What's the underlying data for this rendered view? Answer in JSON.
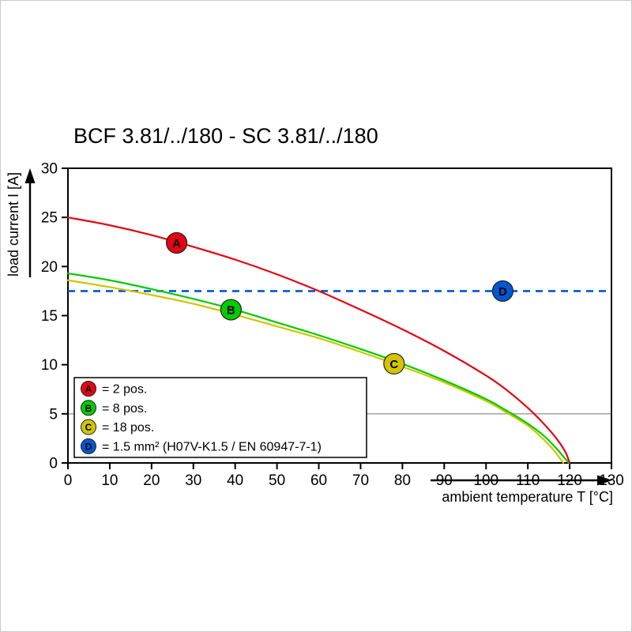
{
  "page": {
    "background": "#ffffff"
  },
  "chart_data": {
    "type": "line",
    "title": "BCF 3.81/../180 - SC 3.81/../180",
    "xlabel": "ambient temperature T [°C]",
    "ylabel": "load current I [A]",
    "xlim": [
      0,
      130
    ],
    "ylim": [
      0,
      30
    ],
    "x_ticks": [
      0,
      10,
      20,
      30,
      40,
      50,
      60,
      70,
      80,
      90,
      100,
      110,
      120,
      130
    ],
    "y_ticks": [
      0,
      5,
      10,
      15,
      20,
      25,
      30
    ],
    "grid": "off",
    "partial_gridline_y": 5,
    "legend_position": "lower left",
    "series": [
      {
        "name": "A",
        "label": "= 2 pos.",
        "color": "#e30613",
        "marker": {
          "x": 26,
          "y": 22.4
        },
        "points": [
          [
            0,
            25.0
          ],
          [
            10,
            24.2
          ],
          [
            20,
            23.2
          ],
          [
            30,
            22.0
          ],
          [
            40,
            20.7
          ],
          [
            50,
            19.2
          ],
          [
            60,
            17.5
          ],
          [
            70,
            15.6
          ],
          [
            80,
            13.6
          ],
          [
            90,
            11.4
          ],
          [
            100,
            8.9
          ],
          [
            105,
            7.4
          ],
          [
            110,
            5.6
          ],
          [
            114,
            3.9
          ],
          [
            117,
            2.4
          ],
          [
            119,
            1.1
          ],
          [
            120,
            0
          ]
        ]
      },
      {
        "name": "B",
        "label": "= 8 pos.",
        "color": "#00cc00",
        "marker": {
          "x": 39,
          "y": 15.6
        },
        "points": [
          [
            0,
            19.3
          ],
          [
            10,
            18.6
          ],
          [
            20,
            17.7
          ],
          [
            30,
            16.7
          ],
          [
            40,
            15.6
          ],
          [
            50,
            14.3
          ],
          [
            60,
            13.0
          ],
          [
            70,
            11.6
          ],
          [
            80,
            10.1
          ],
          [
            90,
            8.4
          ],
          [
            100,
            6.5
          ],
          [
            105,
            5.3
          ],
          [
            110,
            4.0
          ],
          [
            114,
            2.7
          ],
          [
            117,
            1.4
          ],
          [
            119,
            0.4
          ],
          [
            119.8,
            0
          ]
        ]
      },
      {
        "name": "C",
        "label": "= 18 pos.",
        "color": "#d2c500",
        "marker": {
          "x": 78,
          "y": 10.1
        },
        "points": [
          [
            0,
            18.6
          ],
          [
            10,
            17.9
          ],
          [
            20,
            17.1
          ],
          [
            30,
            16.2
          ],
          [
            40,
            15.1
          ],
          [
            50,
            13.9
          ],
          [
            60,
            12.7
          ],
          [
            70,
            11.3
          ],
          [
            80,
            9.8
          ],
          [
            90,
            8.2
          ],
          [
            100,
            6.3
          ],
          [
            105,
            5.1
          ],
          [
            110,
            3.8
          ],
          [
            113,
            2.7
          ],
          [
            116,
            1.4
          ],
          [
            118.5,
            0
          ]
        ]
      }
    ],
    "reference_line": {
      "name": "D",
      "y": 17.5,
      "x_start": 0,
      "x_end": 130,
      "style": "dashed",
      "color": "#0057d2",
      "marker": {
        "x": 104,
        "y": 17.5
      },
      "label": "= 1.5 mm² (H07V-K1.5 / EN 60947-7-1)"
    },
    "legend": {
      "items": [
        {
          "letter": "A",
          "color": "#e30613",
          "text": "= 2 pos."
        },
        {
          "letter": "B",
          "color": "#00cc00",
          "text": "= 8 pos."
        },
        {
          "letter": "C",
          "color": "#d2c500",
          "text": "= 18 pos."
        },
        {
          "letter": "D",
          "color": "#0057d2",
          "text": "= 1.5 mm² (H07V-K1.5 / EN 60947-7-1)"
        }
      ]
    }
  }
}
